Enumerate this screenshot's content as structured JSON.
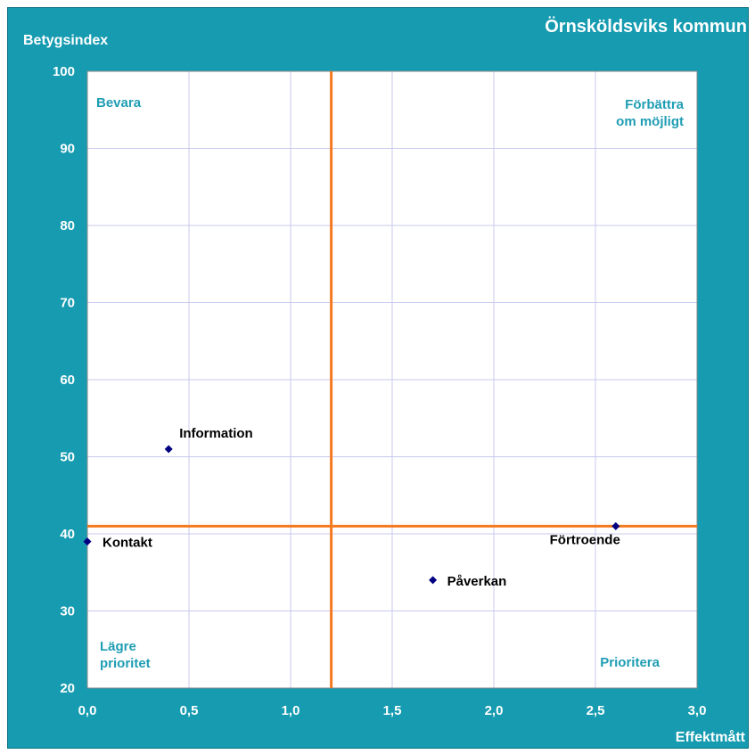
{
  "chart_data": {
    "type": "scatter",
    "title": "Örnsköldsviks kommun",
    "xlabel": "Effektmått",
    "ylabel": "Betygsindex",
    "xlim": [
      0,
      3
    ],
    "ylim": [
      20,
      100
    ],
    "x_ticks": [
      "0,0",
      "0,5",
      "1,0",
      "1,5",
      "2,0",
      "2,5",
      "3,0"
    ],
    "y_ticks": [
      "20",
      "30",
      "40",
      "50",
      "60",
      "70",
      "80",
      "90",
      "100"
    ],
    "grid": true,
    "reference_lines": {
      "x": 1.2,
      "y": 41
    },
    "quadrants": {
      "top_left": [
        "Bevara"
      ],
      "top_right": [
        "Förbättra",
        "om möjligt"
      ],
      "bottom_left": [
        "Lägre",
        "prioritet"
      ],
      "bottom_right": [
        "Prioritera"
      ]
    },
    "points": [
      {
        "label": "Information",
        "x": 0.4,
        "y": 51
      },
      {
        "label": "Kontakt",
        "x": 0.0,
        "y": 39
      },
      {
        "label": "Påverkan",
        "x": 1.7,
        "y": 34
      },
      {
        "label": "Förtroende",
        "x": 2.6,
        "y": 41
      }
    ],
    "colors": {
      "frame": "#169bb0",
      "plot_background": "#ffffff",
      "gridline": "#c8c8ec",
      "reference_line": "#f47a1f",
      "marker": "#000080",
      "quadrant_text": "#1f9db3"
    }
  }
}
